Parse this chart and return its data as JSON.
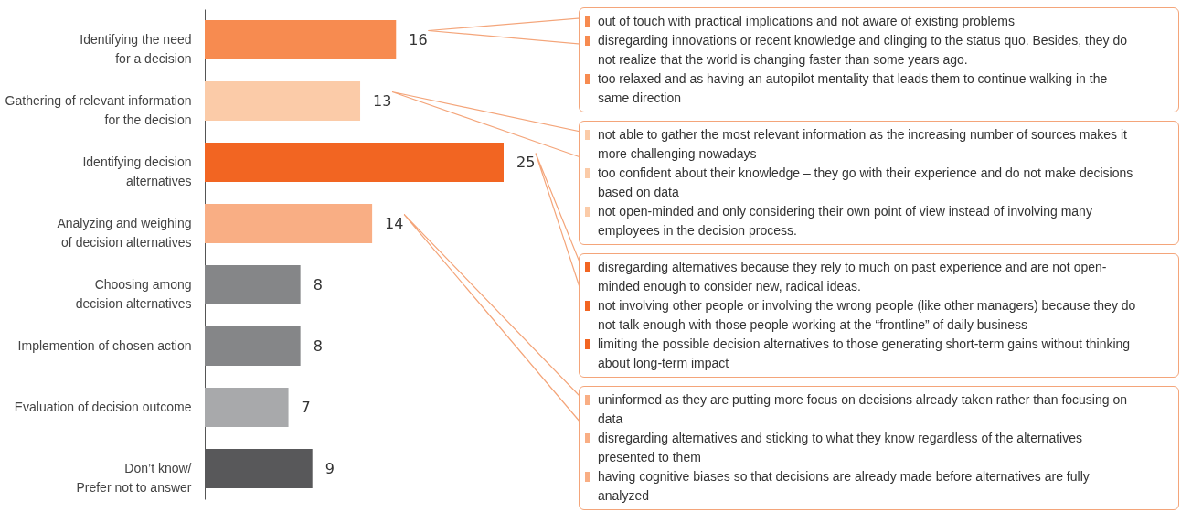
{
  "chart_data": {
    "type": "bar",
    "orientation": "horizontal",
    "data_labels": true,
    "tick_labels": "y",
    "categories": [
      "Identifying the need\nfor a decision",
      "Gathering of relevant information\nfor the decision",
      "Identifying decision\nalternatives",
      "Analyzing and weighing\nof decision alternatives",
      "Choosing among\ndecision alternatives",
      "Implemention of chosen action",
      "Evaluation of decision outcome",
      "Don’t know/\nPrefer not to answer"
    ],
    "values": [
      16,
      13,
      25,
      14,
      8,
      8,
      7,
      9
    ],
    "colors": [
      "#f78b50",
      "#fbcba8",
      "#f26522",
      "#f9ae84",
      "#858688",
      "#858688",
      "#a8a9ab",
      "#58585a"
    ],
    "annotations": [
      "out of touch with practical implications and not aware of existing problems\ndisregarding innovations or recent knowledge and clinging to the status quo. Besides, they do not realize that the world is changing faster than some years ago.\ntoo relaxed and as having an autopilot mentality that leads them to continue walking in the same direction",
      "not able to gather the most relevant information as the increasing number of sources makes it more challenging nowadays\ntoo confident about their knowledge – they go with their experience and do not make decisions based on data\nnot open-minded and only considering their own point of view instead of involving many employees in the decision process.",
      "disregarding alternatives because they rely to much on past experience and are not open-minded enough to consider new, radical ideas.\nnot involving other people or involving the wrong people (like other managers) because they do not talk enough with those people working at the “frontline” of daily business\nlimiting the possible decision alternatives to those generating short-term gains without thinking about long-term impact",
      "uninformed as they are putting more focus on decisions already taken rather than focusing on data\ndisregarding alternatives and sticking to what they know regardless of the alternatives presented to them\nhaving cognitive biases so that decisions are already made before alternatives are fully analyzed"
    ]
  }
}
